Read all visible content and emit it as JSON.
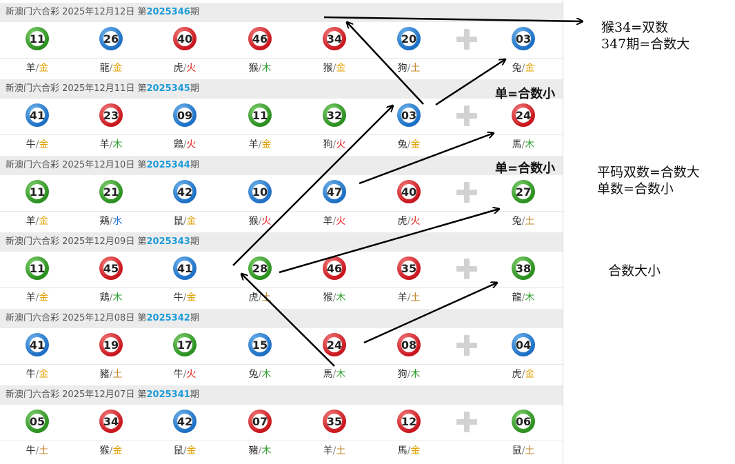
{
  "lottery_name": "新澳门六合彩",
  "period_prefix": "第",
  "period_suffix": "期",
  "element_colors": {
    "金": "#e0a100",
    "木": "#2a9b2a",
    "火": "#e02020",
    "土": "#c08020",
    "水": "#1e6fd0"
  },
  "ball_colors": {
    "red": "#c8161d",
    "blue": "#1d6fc4",
    "green": "#2a8f1f"
  },
  "draws": [
    {
      "date": "2025年12月12日",
      "issue": "2025346",
      "balls": [
        {
          "num": "11",
          "color": "green",
          "zodiac": "羊",
          "element": "金"
        },
        {
          "num": "26",
          "color": "blue",
          "zodiac": "龍",
          "element": "金"
        },
        {
          "num": "40",
          "color": "red",
          "zodiac": "虎",
          "element": "火"
        },
        {
          "num": "46",
          "color": "red",
          "zodiac": "猴",
          "element": "木"
        },
        {
          "num": "34",
          "color": "red",
          "zodiac": "猴",
          "element": "金"
        },
        {
          "num": "20",
          "color": "blue",
          "zodiac": "狗",
          "element": "土"
        },
        {
          "num": "03",
          "color": "blue",
          "zodiac": "兔",
          "element": "金"
        }
      ]
    },
    {
      "date": "2025年12月11日",
      "issue": "2025345",
      "balls": [
        {
          "num": "41",
          "color": "blue",
          "zodiac": "牛",
          "element": "金"
        },
        {
          "num": "23",
          "color": "red",
          "zodiac": "羊",
          "element": "木"
        },
        {
          "num": "09",
          "color": "blue",
          "zodiac": "鶏",
          "element": "火"
        },
        {
          "num": "11",
          "color": "green",
          "zodiac": "羊",
          "element": "金"
        },
        {
          "num": "32",
          "color": "green",
          "zodiac": "狗",
          "element": "火"
        },
        {
          "num": "03",
          "color": "blue",
          "zodiac": "兔",
          "element": "金"
        },
        {
          "num": "24",
          "color": "red",
          "zodiac": "馬",
          "element": "木"
        }
      ]
    },
    {
      "date": "2025年12月10日",
      "issue": "2025344",
      "balls": [
        {
          "num": "11",
          "color": "green",
          "zodiac": "羊",
          "element": "金"
        },
        {
          "num": "21",
          "color": "green",
          "zodiac": "鶏",
          "element": "水"
        },
        {
          "num": "42",
          "color": "blue",
          "zodiac": "鼠",
          "element": "金"
        },
        {
          "num": "10",
          "color": "blue",
          "zodiac": "猴",
          "element": "火"
        },
        {
          "num": "47",
          "color": "blue",
          "zodiac": "羊",
          "element": "火"
        },
        {
          "num": "40",
          "color": "red",
          "zodiac": "虎",
          "element": "火"
        },
        {
          "num": "27",
          "color": "green",
          "zodiac": "兔",
          "element": "土"
        }
      ]
    },
    {
      "date": "2025年12月09日",
      "issue": "2025343",
      "balls": [
        {
          "num": "11",
          "color": "green",
          "zodiac": "羊",
          "element": "金"
        },
        {
          "num": "45",
          "color": "red",
          "zodiac": "鶏",
          "element": "木"
        },
        {
          "num": "41",
          "color": "blue",
          "zodiac": "牛",
          "element": "金"
        },
        {
          "num": "28",
          "color": "green",
          "zodiac": "虎",
          "element": "土"
        },
        {
          "num": "46",
          "color": "red",
          "zodiac": "猴",
          "element": "木"
        },
        {
          "num": "35",
          "color": "red",
          "zodiac": "羊",
          "element": "土"
        },
        {
          "num": "38",
          "color": "green",
          "zodiac": "龍",
          "element": "木"
        }
      ]
    },
    {
      "date": "2025年12月08日",
      "issue": "2025342",
      "balls": [
        {
          "num": "41",
          "color": "blue",
          "zodiac": "牛",
          "element": "金"
        },
        {
          "num": "19",
          "color": "red",
          "zodiac": "豬",
          "element": "土"
        },
        {
          "num": "17",
          "color": "green",
          "zodiac": "牛",
          "element": "火"
        },
        {
          "num": "15",
          "color": "blue",
          "zodiac": "兔",
          "element": "木"
        },
        {
          "num": "24",
          "color": "red",
          "zodiac": "馬",
          "element": "木"
        },
        {
          "num": "08",
          "color": "red",
          "zodiac": "狗",
          "element": "木"
        },
        {
          "num": "04",
          "color": "blue",
          "zodiac": "虎",
          "element": "金"
        }
      ]
    },
    {
      "date": "2025年12月07日",
      "issue": "2025341",
      "balls": [
        {
          "num": "05",
          "color": "green",
          "zodiac": "牛",
          "element": "土"
        },
        {
          "num": "34",
          "color": "red",
          "zodiac": "猴",
          "element": "金"
        },
        {
          "num": "42",
          "color": "blue",
          "zodiac": "鼠",
          "element": "金"
        },
        {
          "num": "07",
          "color": "red",
          "zodiac": "豬",
          "element": "木"
        },
        {
          "num": "35",
          "color": "red",
          "zodiac": "羊",
          "element": "土"
        },
        {
          "num": "12",
          "color": "red",
          "zodiac": "馬",
          "element": "金"
        },
        {
          "num": "06",
          "color": "green",
          "zodiac": "鼠",
          "element": "土"
        }
      ]
    }
  ],
  "annotations": {
    "note1_line1": "猴34=双数",
    "note1_line2": "347期=合数大",
    "label_single_1": "单=合数小",
    "label_single_2": "单=合数小",
    "note2_line1": "平码双数=合数大",
    "note2_line2": "单数=合数小",
    "note3": "合数大小"
  }
}
